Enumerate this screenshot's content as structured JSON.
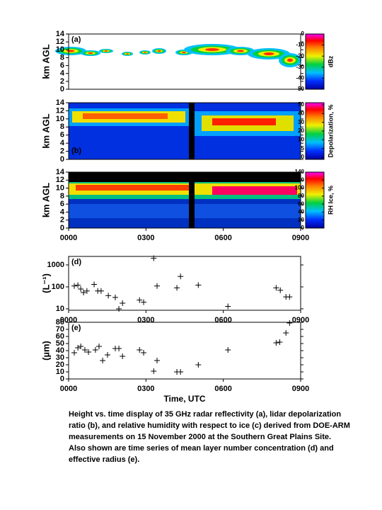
{
  "chart_data": [
    {
      "type": "heatmap",
      "label": "(a)",
      "ylabel": "km AGL",
      "ylim": [
        0,
        14
      ],
      "yticks": [
        0,
        2,
        4,
        6,
        8,
        10,
        12,
        14
      ],
      "xlim": [
        0,
        9
      ],
      "colorbar_label": "dBz",
      "colorbar_lim": [
        -50,
        0
      ],
      "colorbar_ticks": [
        0,
        -10,
        -20,
        -30,
        -40,
        -50
      ]
    },
    {
      "type": "heatmap",
      "label": "(b)",
      "ylabel": "km AGL",
      "ylim": [
        0,
        14
      ],
      "yticks": [
        0,
        2,
        4,
        6,
        8,
        10,
        12,
        14
      ],
      "xlim": [
        0,
        9
      ],
      "colorbar_label": "Depolarization, %",
      "colorbar_ticks": [
        0,
        5,
        10,
        20,
        30,
        40,
        50
      ]
    },
    {
      "type": "heatmap",
      "label": "(c)",
      "ylabel": "km AGL",
      "ylim": [
        0,
        14
      ],
      "yticks": [
        0,
        2,
        4,
        6,
        8,
        10,
        12,
        14
      ],
      "xlim": [
        0,
        9
      ],
      "xticks": [
        {
          "value": 0,
          "label": "0000"
        },
        {
          "value": 3,
          "label": "0300"
        },
        {
          "value": 6,
          "label": "0600"
        },
        {
          "value": 9,
          "label": "0900"
        }
      ],
      "colorbar_label": "RH Ice, %",
      "colorbar_lim": [
        0,
        140
      ],
      "colorbar_ticks": [
        0,
        20,
        40,
        60,
        80,
        100,
        120,
        140
      ]
    },
    {
      "type": "scatter",
      "label": "(d)",
      "ylabel": "(L⁻¹)",
      "log_y": true,
      "ylim": [
        8.6,
        2440
      ],
      "yticks": [
        10,
        100,
        1000
      ],
      "xlim": [
        0,
        9
      ],
      "xticks": [
        {
          "value": 0,
          "label": "0000"
        },
        {
          "value": 3,
          "label": "0300"
        },
        {
          "value": 6,
          "label": "0600"
        },
        {
          "value": 9,
          "label": "0900"
        }
      ],
      "x": [
        0.22,
        0.36,
        0.47,
        0.58,
        0.71,
        0.99,
        1.13,
        1.26,
        1.54,
        1.81,
        1.95,
        2.09,
        2.75,
        2.91,
        3.3,
        3.43,
        4.2,
        4.34,
        5.03,
        6.18,
        8.05,
        8.21,
        8.43,
        8.57
      ],
      "values": [
        110,
        120,
        80,
        55,
        65,
        130,
        65,
        65,
        40,
        33,
        10,
        18,
        25,
        20,
        2000,
        110,
        90,
        300,
        120,
        13,
        90,
        70,
        35,
        35
      ]
    },
    {
      "type": "scatter",
      "label": "(e)",
      "ylabel": "(µm)",
      "ylim": [
        0,
        80
      ],
      "yticks": [
        0,
        10,
        20,
        30,
        40,
        50,
        60,
        70,
        80
      ],
      "xlim": [
        0,
        9
      ],
      "xlabel": "Time, UTC",
      "xticks": [
        {
          "value": 0,
          "label": "0000"
        },
        {
          "value": 3,
          "label": "0300"
        },
        {
          "value": 6,
          "label": "0600"
        },
        {
          "value": 9,
          "label": "0900"
        }
      ],
      "x": [
        0.22,
        0.36,
        0.47,
        0.63,
        0.77,
        1.04,
        1.18,
        1.32,
        1.51,
        1.81,
        1.95,
        2.09,
        2.75,
        2.91,
        3.3,
        3.43,
        4.2,
        4.34,
        5.03,
        6.18,
        8.05,
        8.19,
        8.43,
        8.57
      ],
      "values": [
        37,
        44,
        46,
        41,
        38,
        41,
        46,
        26,
        34,
        43,
        43,
        32,
        41,
        37,
        11,
        26,
        10,
        10,
        20,
        41,
        51,
        52,
        65,
        79
      ]
    }
  ],
  "caption": [
    "Height vs. time display of 35 GHz radar reflectivity (a), lidar depolarization",
    "ratio (b), and relative humidity with respect to ice (c) derived from DOE-ARM",
    "measurements on 15 November 2000 at the Southern Great Plains Site.",
    "Also shown are time series of mean layer number concentration (d) and",
    "effective radius (e)."
  ]
}
